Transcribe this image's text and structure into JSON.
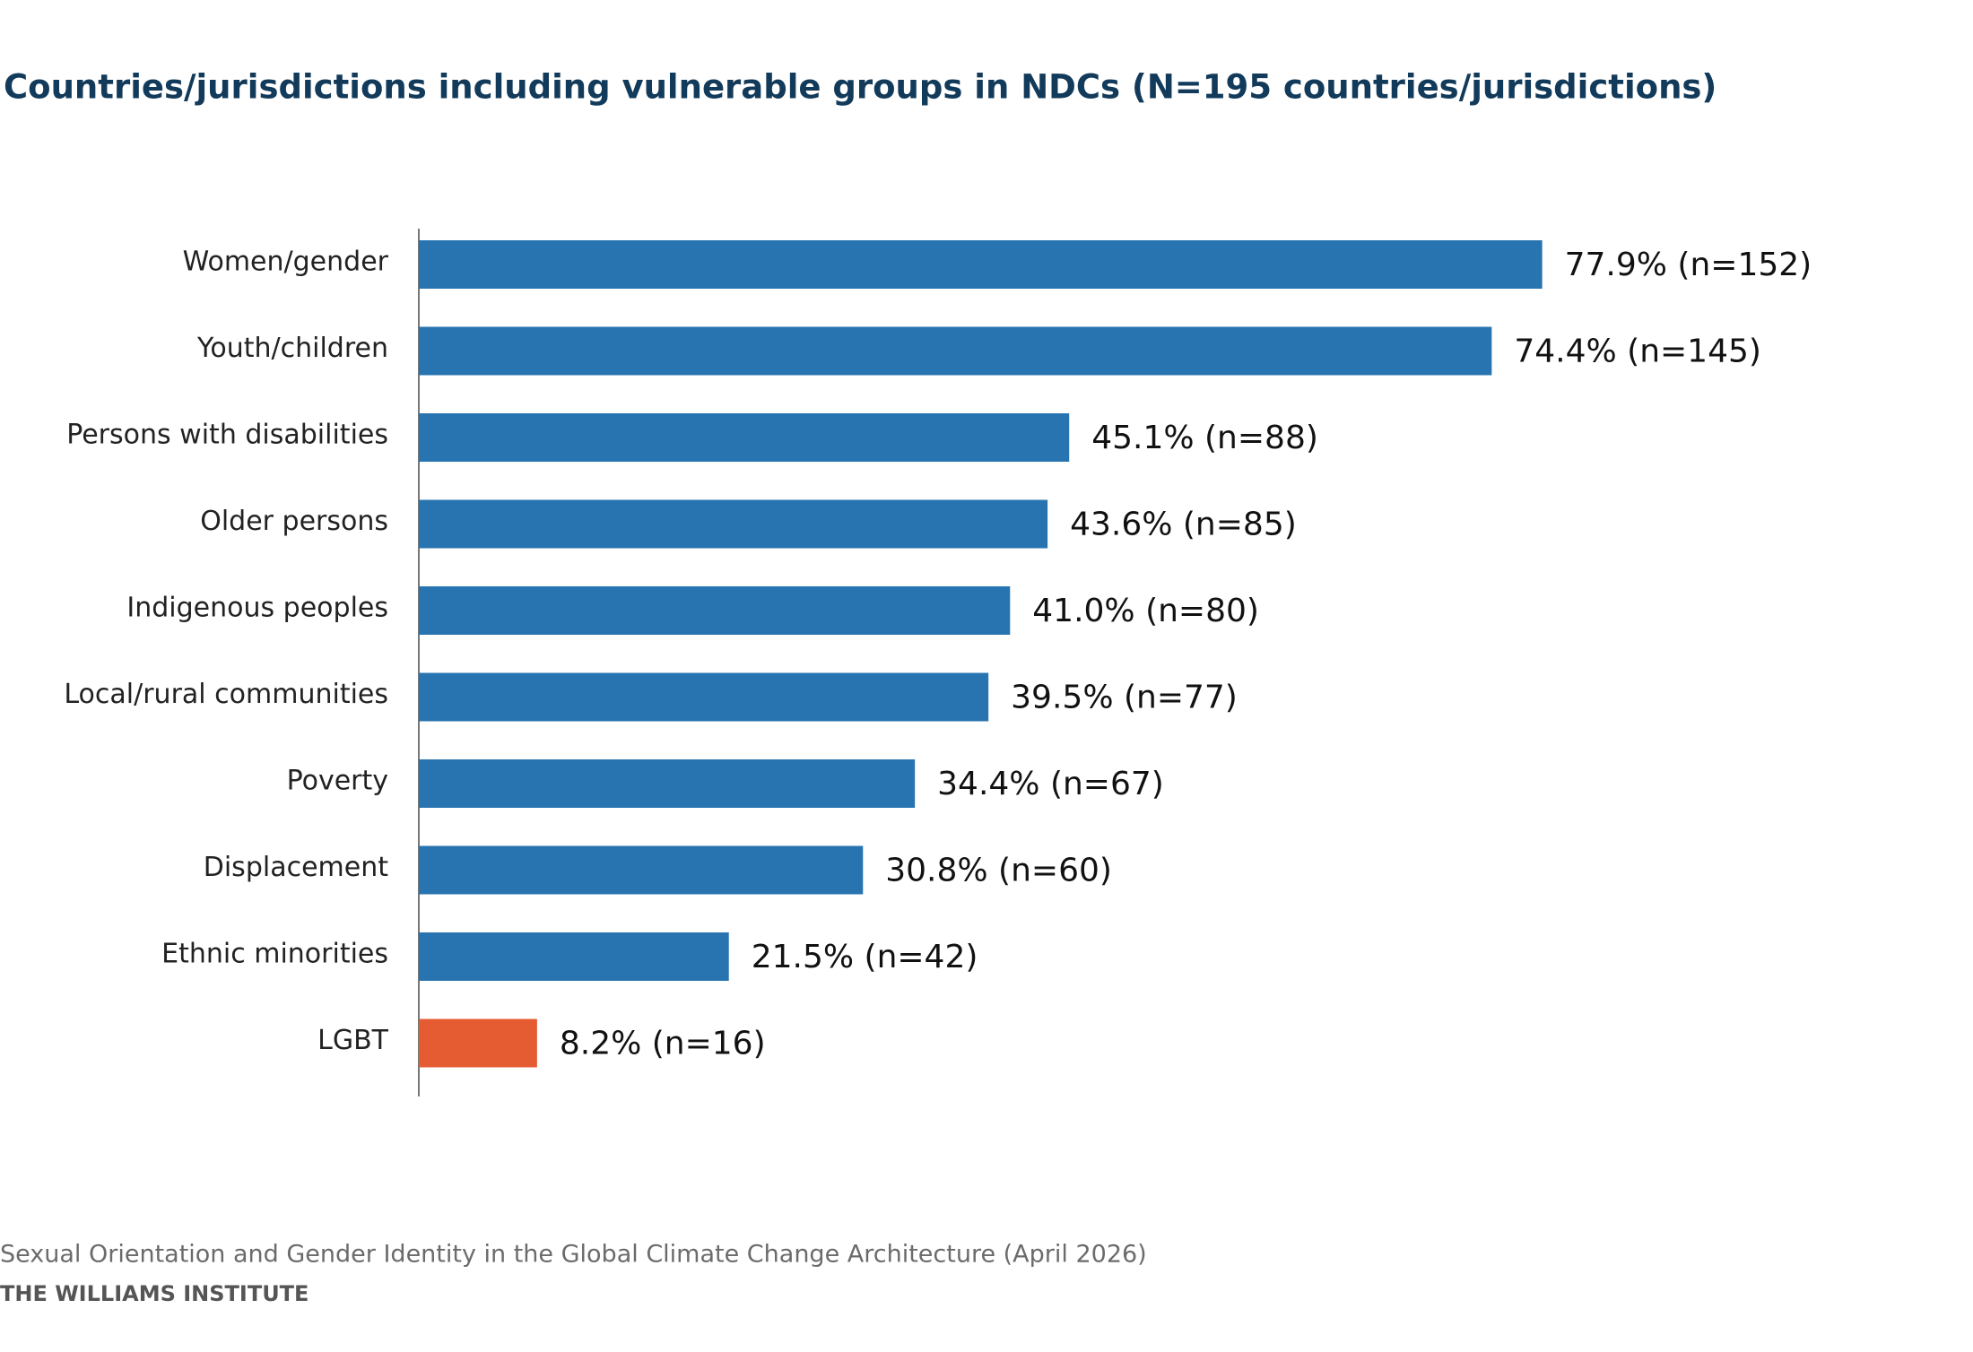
{
  "chart_data": {
    "type": "bar",
    "orientation": "horizontal",
    "title": "Countries/jurisdictions including vulnerable groups in NDCs (N=195 countries/jurisdictions)",
    "categories": [
      "Women/gender",
      "Youth/children",
      "Persons with disabilities",
      "Older persons",
      "Indigenous peoples",
      "Local/rural communities",
      "Poverty",
      "Displacement",
      "Ethnic minorities",
      "LGBT"
    ],
    "values": [
      77.9,
      74.4,
      45.1,
      43.6,
      41.0,
      39.5,
      34.4,
      30.8,
      21.5,
      8.2
    ],
    "value_labels": [
      "77.9% (n=152)",
      "74.4% (n=145)",
      "45.1% (n=88)",
      "43.6% (n=85)",
      "41.0% (n=80)",
      "39.5% (n=77)",
      "34.4% (n=67)",
      "30.8% (n=60)",
      "21.5% (n=42)",
      "8.2% (n=16)"
    ],
    "colors": [
      "#2874b0",
      "#2874b0",
      "#2874b0",
      "#2874b0",
      "#2874b0",
      "#2874b0",
      "#2874b0",
      "#2874b0",
      "#2874b0",
      "#e55c33"
    ],
    "xlim": [
      0,
      100
    ],
    "source": "Sexual Orientation and Gender Identity in the Global Climate Change Architecture (April 2026)",
    "credit": "THE WILLIAMS INSTITUTE"
  }
}
